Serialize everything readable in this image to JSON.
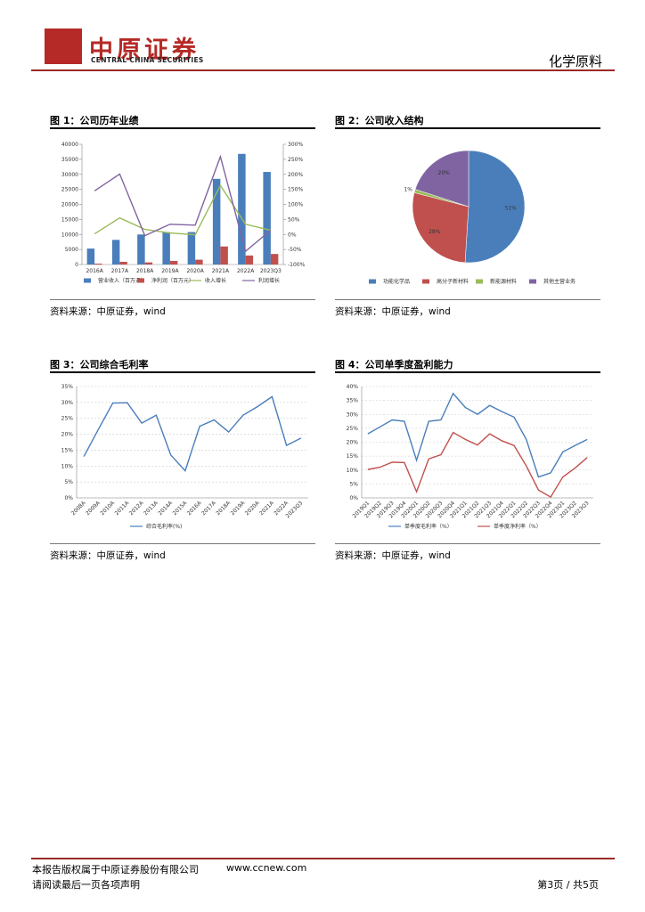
{
  "header": {
    "brand": "中原证券",
    "brand_en": "CENTRAL CHINA SECURITIES",
    "sector": "化学原料"
  },
  "chart_data": [
    {
      "type": "bar",
      "title": "图 1：公司历年业绩",
      "source": "资料来源：中原证券，wind",
      "categories": [
        "2016A",
        "2017A",
        "2018A",
        "2019A",
        "2020A",
        "2021A",
        "2022A",
        "2023Q3"
      ],
      "series": [
        {
          "name": "营业收入（百万元）",
          "type": "bar",
          "color": "#4a7ebb",
          "values": [
            5300,
            8200,
            10000,
            10800,
            10800,
            28500,
            36800,
            30800
          ]
        },
        {
          "name": "净利润（百万元）",
          "type": "bar",
          "color": "#c0504d",
          "values": [
            300,
            900,
            700,
            1200,
            1600,
            6000,
            3000,
            3500
          ]
        },
        {
          "name": "收入增长",
          "type": "line",
          "axis": "y2",
          "color": "#9bbb59",
          "values": [
            2,
            55,
            17,
            5,
            -1,
            163,
            34,
            14
          ]
        },
        {
          "name": "利润增长",
          "type": "line",
          "axis": "y2",
          "color": "#8064a2",
          "values": [
            145,
            201,
            -4,
            34,
            31,
            259,
            -56,
            14
          ]
        }
      ],
      "ylim": [
        0,
        40000
      ],
      "yticks": [
        0,
        5000,
        10000,
        15000,
        20000,
        25000,
        30000,
        35000,
        40000
      ],
      "y2lim": [
        -100,
        300
      ],
      "y2ticks": [
        {
          "value": -100,
          "label": "-100%"
        },
        {
          "value": -50,
          "label": "-50%"
        },
        {
          "value": 0,
          "label": "0%"
        },
        {
          "value": 50,
          "label": "50%"
        },
        {
          "value": 100,
          "label": "100%"
        },
        {
          "value": 150,
          "label": "150%"
        },
        {
          "value": 200,
          "label": "200%"
        },
        {
          "value": 250,
          "label": "250%"
        },
        {
          "value": 300,
          "label": "300%"
        }
      ],
      "grid": false
    },
    {
      "type": "pie",
      "title": "图 2：公司收入结构",
      "source": "资料来源：中原证券，wind",
      "categories": [
        "功能化学品",
        "高分子新材料",
        "新能源材料",
        "其他主营业务"
      ],
      "values": [
        51,
        28,
        1,
        20
      ],
      "value_labels": [
        "51%",
        "28%",
        "1%",
        "20%"
      ],
      "colors": [
        "#4a7ebb",
        "#c0504d",
        "#9bbb59",
        "#8064a2"
      ]
    },
    {
      "type": "line",
      "title": "图 3：公司综合毛利率",
      "source": "资料来源：中原证券，wind",
      "categories": [
        "2008A",
        "2009A",
        "2010A",
        "2011A",
        "2012A",
        "2013A",
        "2014A",
        "2015A",
        "2016A",
        "2017A",
        "2018A",
        "2019A",
        "2020A",
        "2021A",
        "2022A",
        "2023Q3"
      ],
      "series": [
        {
          "name": "综合毛利率(%)",
          "color": "#4a7ebb",
          "values": [
            13,
            21.5,
            29.8,
            29.9,
            23.5,
            26,
            13.5,
            8.5,
            22.5,
            24.5,
            20.7,
            26,
            28.7,
            31.8,
            16.5,
            18.8
          ]
        }
      ],
      "ylim": [
        0,
        35
      ],
      "yticks": [
        {
          "value": 0,
          "label": "0%"
        },
        {
          "value": 5,
          "label": "5%"
        },
        {
          "value": 10,
          "label": "10%"
        },
        {
          "value": 15,
          "label": "15%"
        },
        {
          "value": 20,
          "label": "20%"
        },
        {
          "value": 25,
          "label": "25%"
        },
        {
          "value": 30,
          "label": "30%"
        },
        {
          "value": 35,
          "label": "35%"
        }
      ],
      "grid": true
    },
    {
      "type": "line",
      "title": "图 4：公司单季度盈利能力",
      "source": "资料来源：中原证券，wind",
      "categories": [
        "2019Q1",
        "2019Q2",
        "2019Q3",
        "2019Q4",
        "2020Q1",
        "2020Q2",
        "2020Q3",
        "2020Q4",
        "2021Q1",
        "2021Q2",
        "2021Q3",
        "2021Q4",
        "2022Q1",
        "2022Q2",
        "2022Q3",
        "2022Q4",
        "2023Q1",
        "2023Q2",
        "2023Q3"
      ],
      "series": [
        {
          "name": "单季度毛利率（%）",
          "color": "#4a7ebb",
          "values": [
            23,
            25.5,
            28,
            27.5,
            13.5,
            27.5,
            28,
            37.5,
            32.5,
            30,
            33.2,
            31,
            29,
            21,
            7.5,
            9,
            16.5,
            18.8,
            21
          ]
        },
        {
          "name": "单季度净利率（%）",
          "color": "#c0504d",
          "values": [
            10.2,
            11,
            12.8,
            12.7,
            2.2,
            14,
            15.5,
            23.5,
            21,
            19,
            23,
            20.5,
            18.8,
            11.5,
            2.8,
            0.3,
            7.5,
            10.7,
            14.5
          ]
        }
      ],
      "ylim": [
        0,
        40
      ],
      "yticks": [
        {
          "value": 0,
          "label": "0%"
        },
        {
          "value": 5,
          "label": "5%"
        },
        {
          "value": 10,
          "label": "10%"
        },
        {
          "value": 15,
          "label": "15%"
        },
        {
          "value": 20,
          "label": "20%"
        },
        {
          "value": 25,
          "label": "25%"
        },
        {
          "value": 30,
          "label": "30%"
        },
        {
          "value": 35,
          "label": "35%"
        },
        {
          "value": 40,
          "label": "40%"
        }
      ],
      "grid": true
    }
  ],
  "footer": {
    "copyright": "本报告版权属于中原证券股份有限公司",
    "website": "www.ccnew.com",
    "notice": "请阅读最后一页各项声明",
    "page": "第3页 / 共5页"
  }
}
